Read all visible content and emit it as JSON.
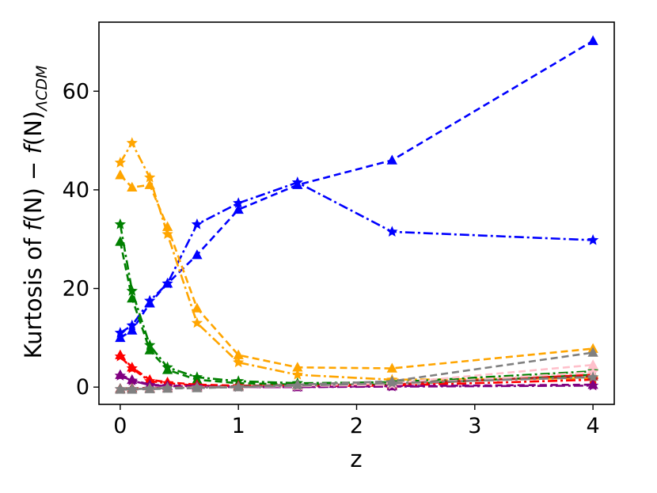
{
  "chart_data": {
    "type": "line",
    "xlabel": "z",
    "ylabel": "Kurtosis of f(N) − f(N)ΛCDM",
    "ylabel_parts": {
      "prefix": "Kurtosis of ",
      "f1": "f",
      "n1": "(N) − ",
      "f2": "f",
      "n2": "(N)",
      "sub": "ΛCDM"
    },
    "xlim": [
      -0.18,
      4.18
    ],
    "ylim": [
      -3.5,
      74
    ],
    "xticks": [
      0,
      1,
      2,
      3,
      4
    ],
    "xtick_labels": [
      "0",
      "1",
      "2",
      "3",
      "4"
    ],
    "yticks": [
      0,
      20,
      40,
      60
    ],
    "ytick_labels": [
      "0",
      "20",
      "40",
      "60"
    ],
    "grid": false,
    "x": [
      0,
      0.1,
      0.25,
      0.4,
      0.65,
      1.0,
      1.5,
      2.3,
      4.0
    ],
    "series": [
      {
        "color": "#0000ff",
        "marker": "triangle",
        "dash": "dashed",
        "values": [
          10.0,
          11.5,
          17.0,
          21.0,
          26.8,
          36.0,
          41.0,
          46.0,
          70.2
        ]
      },
      {
        "color": "#0000ff",
        "marker": "star",
        "dash": "dashdot",
        "values": [
          11.0,
          12.5,
          17.5,
          21.0,
          33.0,
          37.3,
          41.5,
          31.5,
          29.8
        ]
      },
      {
        "color": "#ffa500",
        "marker": "triangle",
        "dash": "dashed",
        "values": [
          43.0,
          40.5,
          41.0,
          32.5,
          16.0,
          6.5,
          4.0,
          3.8,
          7.8
        ]
      },
      {
        "color": "#ffa500",
        "marker": "star",
        "dash": "dashdot",
        "values": [
          45.5,
          49.5,
          42.5,
          31.0,
          13.0,
          5.0,
          2.5,
          1.5,
          1.8
        ]
      },
      {
        "color": "#008000",
        "marker": "triangle",
        "dash": "dashed",
        "values": [
          29.5,
          18.0,
          7.5,
          3.5,
          1.5,
          0.8,
          0.5,
          0.5,
          2.5
        ]
      },
      {
        "color": "#008000",
        "marker": "star",
        "dash": "dashdot",
        "values": [
          33.0,
          19.5,
          8.5,
          4.0,
          2.0,
          1.2,
          0.8,
          1.0,
          3.2
        ]
      },
      {
        "color": "#ff0000",
        "marker": "triangle",
        "dash": "dashed",
        "values": [
          6.5,
          4.0,
          1.5,
          1.0,
          0.5,
          0.3,
          0.3,
          0.5,
          2.5
        ]
      },
      {
        "color": "#ff0000",
        "marker": "star",
        "dash": "dashdot",
        "values": [
          6.2,
          3.8,
          1.2,
          0.8,
          0.3,
          0.2,
          0.2,
          0.3,
          1.5
        ]
      },
      {
        "color": "#800080",
        "marker": "triangle",
        "dash": "dashed",
        "values": [
          2.5,
          1.5,
          0.5,
          0.3,
          0.2,
          0.0,
          0.0,
          0.2,
          0.5
        ]
      },
      {
        "color": "#800080",
        "marker": "star",
        "dash": "dashdot",
        "values": [
          2.3,
          1.3,
          0.4,
          0.2,
          0.1,
          0.0,
          0.0,
          0.1,
          0.3
        ]
      },
      {
        "color": "#a52a2a",
        "marker": "triangle",
        "dash": "dashed",
        "values": [
          -0.3,
          -0.2,
          -0.2,
          -0.1,
          0.0,
          0.2,
          0.5,
          0.8,
          2.2
        ]
      },
      {
        "color": "#ffc0cb",
        "marker": "triangle",
        "dash": "dashed",
        "values": [
          -0.5,
          -0.5,
          -0.3,
          -0.2,
          -0.1,
          0.0,
          0.3,
          0.8,
          4.5
        ]
      },
      {
        "color": "#ffc0cb",
        "marker": "star",
        "dash": "dashdot",
        "values": [
          -0.5,
          -0.4,
          -0.3,
          -0.2,
          -0.1,
          0.0,
          0.2,
          0.5,
          3.0
        ]
      },
      {
        "color": "#808080",
        "marker": "triangle",
        "dash": "dashed",
        "values": [
          -0.5,
          -0.5,
          -0.4,
          -0.3,
          -0.2,
          0.0,
          0.5,
          1.2,
          7.0
        ]
      },
      {
        "color": "#808080",
        "marker": "star",
        "dash": "dashdot",
        "values": [
          -0.4,
          -0.4,
          -0.3,
          -0.2,
          -0.1,
          0.0,
          0.3,
          0.8,
          2.0
        ]
      }
    ]
  }
}
